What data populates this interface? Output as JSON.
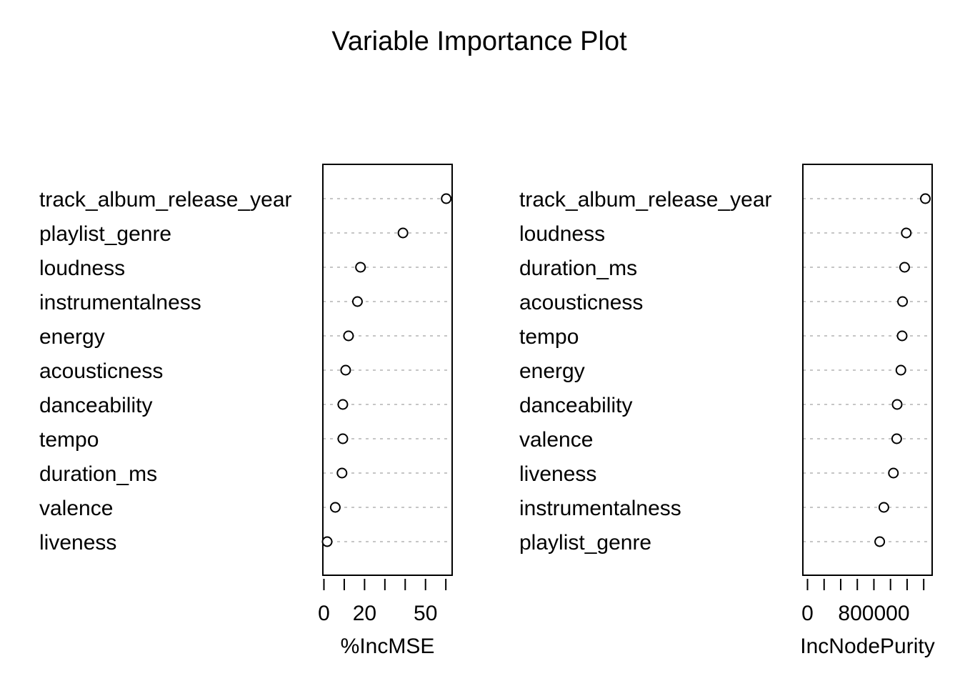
{
  "chart_data": {
    "type": "scatter",
    "title": "Variable Importance Plot",
    "panels": [
      {
        "xlabel": "%IncMSE",
        "xlim": [
          0,
          61
        ],
        "tick_values": [
          0,
          10,
          20,
          30,
          40,
          50,
          60
        ],
        "tick_labels": [
          "0",
          "",
          "20",
          "",
          "",
          "50",
          ""
        ],
        "categories": [
          "track_album_release_year",
          "playlist_genre",
          "loudness",
          "instrumentalness",
          "energy",
          "acousticness",
          "danceability",
          "tempo",
          "duration_ms",
          "valence",
          "liveness"
        ],
        "values": [
          60.2,
          38.9,
          18.0,
          16.5,
          12.1,
          10.7,
          9.3,
          9.3,
          8.9,
          5.6,
          1.6
        ]
      },
      {
        "xlabel": "IncNodePurity",
        "xlim": [
          0,
          1450000
        ],
        "tick_values": [
          0,
          200000,
          400000,
          600000,
          800000,
          1000000,
          1200000,
          1400000
        ],
        "tick_labels": [
          "0",
          "",
          "",
          "",
          "800000",
          "",
          "",
          ""
        ],
        "categories": [
          "track_album_release_year",
          "loudness",
          "duration_ms",
          "acousticness",
          "tempo",
          "energy",
          "danceability",
          "valence",
          "liveness",
          "instrumentalness",
          "playlist_genre"
        ],
        "values": [
          1420000,
          1190000,
          1170000,
          1145000,
          1140000,
          1125000,
          1080000,
          1075000,
          1035000,
          920000,
          870000
        ]
      }
    ]
  }
}
